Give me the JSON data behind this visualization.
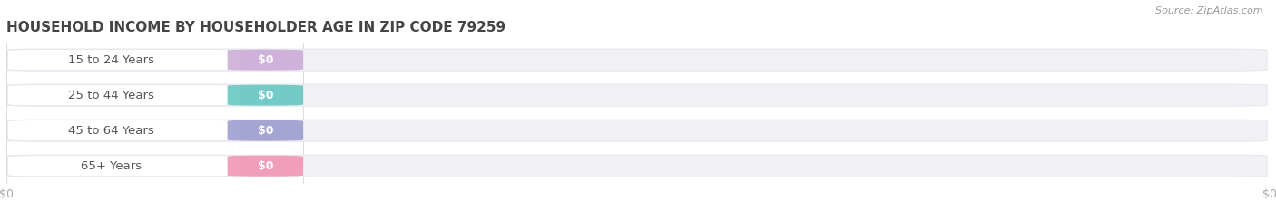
{
  "title": "HOUSEHOLD INCOME BY HOUSEHOLDER AGE IN ZIP CODE 79259",
  "source": "Source: ZipAtlas.com",
  "categories": [
    "15 to 24 Years",
    "25 to 44 Years",
    "45 to 64 Years",
    "65+ Years"
  ],
  "values": [
    0,
    0,
    0,
    0
  ],
  "bar_colors": [
    "#c9a8d4",
    "#5ec4be",
    "#9898cc",
    "#f090b0"
  ],
  "background_color": "#ffffff",
  "bar_bg_color": "#f0f0f5",
  "white_pill_color": "#ffffff",
  "title_color": "#444444",
  "label_color": "#555555",
  "tick_label_color": "#aaaaaa",
  "source_color": "#999999",
  "figsize": [
    14.06,
    2.33
  ],
  "dpi": 100
}
